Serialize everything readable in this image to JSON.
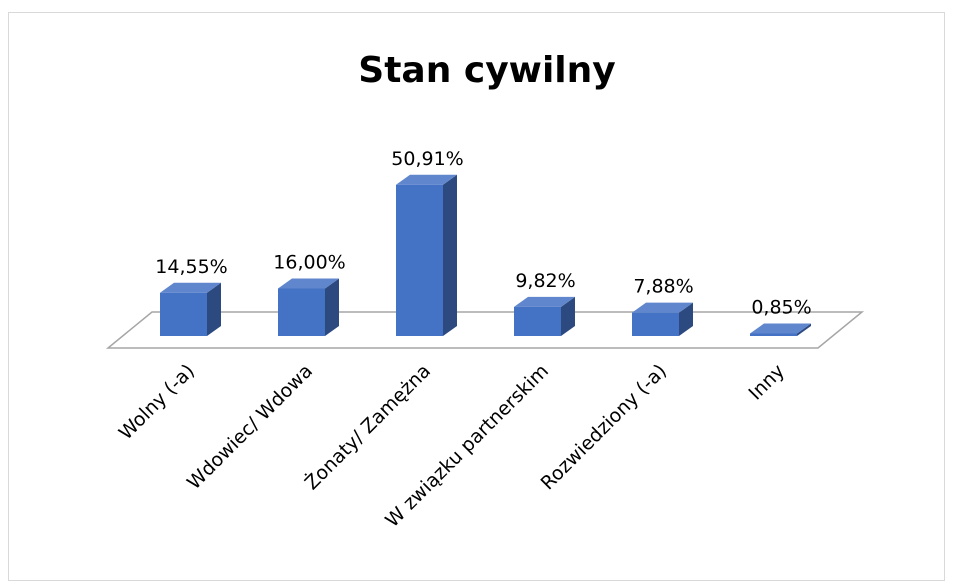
{
  "chart_data": {
    "type": "bar3d",
    "title": "Stan cywilny",
    "categories": [
      "Wolny (-a)",
      "Wdowiec/ Wdowa",
      "Żonaty/ Zamężna",
      "W związku partnerskim",
      "Rozwiedziony (-a)",
      "Inny"
    ],
    "values": [
      14.55,
      16.0,
      50.91,
      9.82,
      7.88,
      0.85
    ],
    "value_labels": [
      "14,55%",
      "16,00%",
      "50,91%",
      "9,82%",
      "7,88%",
      "0,85%"
    ],
    "color": "#4472c4"
  }
}
